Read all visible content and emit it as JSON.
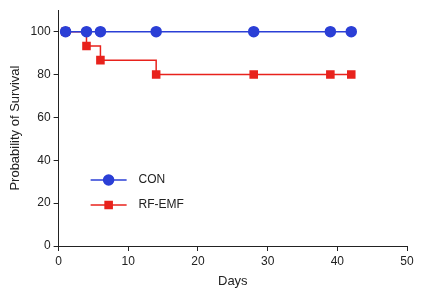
{
  "chart_data": {
    "type": "line",
    "x_label": "Days",
    "y_label": "Probability of Survival",
    "series": [
      {
        "name": "CON",
        "color": "#2b3fd6",
        "marker": "circle",
        "line_style": "steps",
        "x": [
          1,
          4,
          6,
          14,
          28,
          39,
          42
        ],
        "values": [
          100,
          100,
          100,
          100,
          100,
          100,
          100
        ]
      },
      {
        "name": "RF-EMF",
        "color": "#e8221c",
        "marker": "square",
        "line_style": "steps",
        "x": [
          1,
          4,
          6,
          14,
          28,
          39,
          42
        ],
        "values": [
          100,
          93.3,
          86.7,
          80,
          80,
          80,
          80
        ]
      }
    ],
    "xlim": [
      0,
      50
    ],
    "xticks": [
      0,
      10,
      20,
      30,
      40,
      50
    ],
    "ylim": [
      0,
      110
    ],
    "yticks": [
      0,
      20,
      40,
      60,
      80,
      100
    ],
    "grid": false,
    "legend": "left"
  }
}
